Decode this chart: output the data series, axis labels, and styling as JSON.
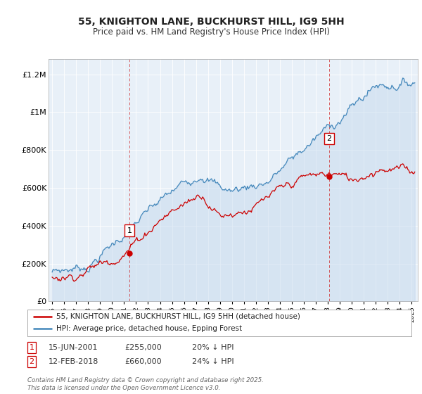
{
  "title": "55, KNIGHTON LANE, BUCKHURST HILL, IG9 5HH",
  "subtitle": "Price paid vs. HM Land Registry's House Price Index (HPI)",
  "title_fontsize": 10,
  "subtitle_fontsize": 8.5,
  "background_color": "#ffffff",
  "plot_bg_color": "#e8f0f8",
  "grid_color": "#ffffff",
  "ylabel_ticks": [
    "£0",
    "£200K",
    "£400K",
    "£600K",
    "£800K",
    "£1M",
    "£1.2M"
  ],
  "ytick_values": [
    0,
    200000,
    400000,
    600000,
    800000,
    1000000,
    1200000
  ],
  "ylim": [
    0,
    1280000
  ],
  "xlim_start": 1994.7,
  "xlim_end": 2025.5,
  "xticks": [
    1995,
    1996,
    1997,
    1998,
    1999,
    2000,
    2001,
    2002,
    2003,
    2004,
    2005,
    2006,
    2007,
    2008,
    2009,
    2010,
    2011,
    2012,
    2013,
    2014,
    2015,
    2016,
    2017,
    2018,
    2019,
    2020,
    2021,
    2022,
    2023,
    2024,
    2025
  ],
  "red_line_color": "#cc0000",
  "blue_line_color": "#4488bb",
  "blue_fill_color": "#c5d9ee",
  "sale1_x": 2001.45,
  "sale1_y": 255000,
  "sale2_x": 2018.1,
  "sale2_y": 660000,
  "annotation1_label": "1",
  "annotation2_label": "2",
  "legend1_label": "55, KNIGHTON LANE, BUCKHURST HILL, IG9 5HH (detached house)",
  "legend2_label": "HPI: Average price, detached house, Epping Forest",
  "table_row1": [
    "1",
    "15-JUN-2001",
    "£255,000",
    "20% ↓ HPI"
  ],
  "table_row2": [
    "2",
    "12-FEB-2018",
    "£660,000",
    "24% ↓ HPI"
  ],
  "footer": "Contains HM Land Registry data © Crown copyright and database right 2025.\nThis data is licensed under the Open Government Licence v3.0."
}
